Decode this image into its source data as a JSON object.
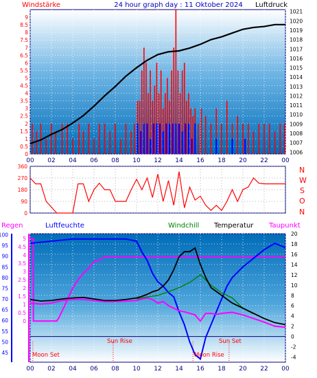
{
  "header": {
    "left_label": "Windstärke",
    "title": "24 hour graph day : 11 Oktober 2024",
    "right_label": "Luftdruck"
  },
  "mid_header": {
    "regen": "Regen",
    "luftfeuchte": "Luftfeuchte",
    "windchill": "Windchill",
    "temperatur": "Temperatur",
    "taupunkt": "Taupunkt"
  },
  "compass": [
    "N",
    "W",
    "S",
    "O",
    "N"
  ],
  "annotations": {
    "moon_set": "Moon Set",
    "sun_rise": "Sun Rise",
    "moon_rise": "Moon Rise",
    "sun_set": "Sun Set"
  },
  "colors": {
    "red": "#ff0000",
    "blue": "#0000ff",
    "black": "#000000",
    "magenta": "#ff00ff",
    "darkgreen": "#008000",
    "bg_top": "#006cb8",
    "bg_bottom": "#ffffff"
  },
  "chart_data": [
    {
      "type": "bar",
      "panel": "wind-pressure",
      "x_ticks": [
        "00",
        "02",
        "04",
        "06",
        "08",
        "10",
        "12",
        "14",
        "16",
        "18",
        "20",
        "22",
        "00"
      ],
      "xlim": [
        0,
        24
      ],
      "y_left_ticks": [
        "0",
        "0.5",
        "1",
        "1.5",
        "2",
        "2.5",
        "3",
        "3.5",
        "4",
        "4.5",
        "5",
        "5.5",
        "6",
        "6.5",
        "7",
        "7.5",
        "8",
        "8.5",
        "9"
      ],
      "ylim_left": [
        0,
        9.5
      ],
      "y_right_ticks": [
        "1006",
        "1007",
        "1008",
        "1009",
        "1010",
        "1011",
        "1012",
        "1013",
        "1014",
        "1015",
        "1016",
        "1017",
        "1018",
        "1019",
        "1020",
        "1021"
      ],
      "ylim_right": [
        1005.8,
        1021.2
      ],
      "pressure": {
        "x": [
          0,
          1,
          2,
          3,
          4,
          5,
          6,
          7,
          8,
          9,
          10,
          11,
          12,
          13,
          14,
          15,
          16,
          17,
          18,
          19,
          20,
          21,
          22,
          23,
          24
        ],
        "y": [
          1006.9,
          1007.3,
          1007.9,
          1008.4,
          1009.1,
          1009.9,
          1010.9,
          1012.0,
          1013.0,
          1014.1,
          1015.0,
          1015.8,
          1016.4,
          1016.7,
          1016.8,
          1017.1,
          1017.5,
          1018.0,
          1018.3,
          1018.7,
          1019.1,
          1019.3,
          1019.4,
          1019.6,
          1019.6
        ]
      },
      "wind_avg": {
        "x": [
          10.1,
          10.4,
          10.7,
          11.0,
          11.3,
          11.6,
          11.9,
          12.2,
          12.5,
          12.8,
          13.1,
          13.4,
          13.7,
          14.0,
          14.3,
          14.6,
          14.9,
          15.2,
          15.5,
          17.5,
          19.0,
          20.2
        ],
        "y": [
          2,
          1.5,
          2,
          2,
          1,
          2,
          2,
          2,
          1.5,
          2,
          2,
          2,
          2,
          2,
          1.5,
          2,
          2,
          1,
          2,
          1,
          1,
          1
        ]
      },
      "wind_gust": {
        "x": [
          0.2,
          0.6,
          1.0,
          1.5,
          2.0,
          2.4,
          3.0,
          3.5,
          4.0,
          4.6,
          5.0,
          5.5,
          6.0,
          6.5,
          7.0,
          7.5,
          8.0,
          8.5,
          9.0,
          9.5,
          9.8,
          10.1,
          10.3,
          10.5,
          10.7,
          10.9,
          11.1,
          11.3,
          11.5,
          11.7,
          11.9,
          12.1,
          12.3,
          12.5,
          12.7,
          12.9,
          13.1,
          13.3,
          13.5,
          13.7,
          13.9,
          14.1,
          14.3,
          14.5,
          14.7,
          14.9,
          15.1,
          15.3,
          15.5,
          15.8,
          16.1,
          16.5,
          17.0,
          17.5,
          18.0,
          18.5,
          19.0,
          19.5,
          20.0,
          20.5,
          21.0,
          21.5,
          22.0,
          22.5,
          23.0,
          23.5,
          23.9
        ],
        "y": [
          2,
          1.5,
          2,
          1,
          2,
          1.5,
          2,
          2,
          1,
          2,
          1.5,
          2,
          1,
          2,
          2,
          1.5,
          2,
          1,
          2,
          1.5,
          2,
          3.5,
          3.5,
          5.5,
          7,
          6,
          4,
          5.5,
          3.5,
          4.5,
          6,
          4,
          5.5,
          3,
          4,
          5,
          3.5,
          5.5,
          7,
          9.5,
          5.5,
          4,
          5.5,
          6,
          3.5,
          4,
          3,
          2.5,
          3,
          2,
          3,
          2.5,
          2,
          3,
          2,
          3.5,
          2,
          2.5,
          2,
          2,
          1.5,
          2,
          2,
          2,
          1.5,
          2,
          2
        ]
      }
    },
    {
      "type": "line",
      "panel": "wind-direction",
      "xlim": [
        0,
        24
      ],
      "y_ticks": [
        "0",
        "90",
        "180",
        "270",
        "360"
      ],
      "ylim": [
        0,
        360
      ],
      "direction": {
        "x": [
          0,
          0.5,
          1.0,
          1.5,
          2.0,
          2.5,
          3.0,
          3.5,
          4.0,
          4.5,
          5.0,
          5.5,
          6.0,
          6.5,
          7.0,
          7.5,
          8.0,
          8.5,
          9.0,
          9.5,
          10.0,
          10.5,
          11.0,
          11.5,
          12.0,
          12.5,
          13.0,
          13.5,
          14.0,
          14.5,
          15.0,
          15.5,
          16.0,
          16.5,
          17.0,
          17.5,
          18.0,
          18.5,
          19.0,
          19.5,
          20.0,
          20.5,
          21.0,
          21.5,
          22.0,
          22.5,
          23.0,
          23.5,
          24.0
        ],
        "y": [
          270,
          225,
          225,
          90,
          45,
          0,
          0,
          0,
          0,
          225,
          225,
          90,
          180,
          230,
          180,
          180,
          90,
          90,
          90,
          180,
          260,
          180,
          270,
          120,
          300,
          90,
          250,
          60,
          320,
          40,
          200,
          100,
          130,
          60,
          20,
          60,
          20,
          90,
          180,
          90,
          180,
          200,
          270,
          230,
          225,
          225,
          225,
          225,
          225
        ]
      }
    },
    {
      "type": "line",
      "panel": "humidity-temperature",
      "x_ticks": [
        "00",
        "02",
        "04",
        "06",
        "08",
        "10",
        "12",
        "14",
        "16",
        "18",
        "20",
        "22",
        "00"
      ],
      "xlim": [
        0,
        24
      ],
      "y_left_ticks": [
        "45",
        "50",
        "55",
        "60",
        "65",
        "70",
        "75",
        "80",
        "85",
        "90",
        "95",
        "100"
      ],
      "ylim_humidity": [
        40.5,
        100.5
      ],
      "rain_ticks": [
        "0",
        "0.5",
        "1",
        "1.5",
        "2",
        "2.5",
        "3",
        "3.5",
        "4",
        "4.5",
        "5"
      ],
      "y_right_ticks": [
        "-4",
        "-2",
        "0",
        "2",
        "4",
        "6",
        "8",
        "10",
        "12",
        "14",
        "16",
        "18",
        "20"
      ],
      "ylim_temperature": [
        -5,
        20
      ],
      "humidity": {
        "x": [
          0,
          2,
          4,
          5.5,
          7,
          8,
          9,
          10,
          10.5,
          11,
          11.5,
          12,
          12.5,
          13,
          13.5,
          14,
          14.5,
          15,
          15.5,
          16,
          16.5,
          17,
          17.5,
          18,
          18.5,
          19,
          20,
          21,
          22,
          23,
          24
        ],
        "y": [
          96,
          97,
          98,
          98,
          98,
          98,
          98,
          97,
          92,
          88,
          82,
          78,
          76,
          73,
          71,
          64,
          58,
          50,
          44,
          42,
          52,
          58,
          64,
          70,
          76,
          80,
          85,
          89,
          93,
          96,
          94
        ]
      },
      "temperature": {
        "x": [
          0,
          1,
          2,
          3,
          4,
          5,
          6,
          7,
          8,
          9,
          10,
          10.5,
          11,
          11.5,
          12,
          12.5,
          13,
          13.5,
          14,
          14.5,
          15,
          15.5,
          16,
          16.5,
          17,
          18,
          19,
          20,
          21,
          22,
          23,
          24
        ],
        "y": [
          7.2,
          6.9,
          7.0,
          7.3,
          7.5,
          7.6,
          7.3,
          7.0,
          7.0,
          7.2,
          7.5,
          7.8,
          8.2,
          8.7,
          9.0,
          9.8,
          11.0,
          13.0,
          15.5,
          16.5,
          16.5,
          17.2,
          14.0,
          11.5,
          9.5,
          8.0,
          6.5,
          5.5,
          4.5,
          3.5,
          2.7,
          2.3
        ]
      },
      "windchill": {
        "x": [
          10,
          11,
          12,
          13,
          14,
          15,
          16,
          17,
          18,
          19,
          20,
          21
        ],
        "y": [
          7.3,
          7.7,
          8.0,
          8.7,
          9.5,
          10.5,
          12.0,
          10.0,
          8.5,
          7.5,
          5.5,
          4.4
        ]
      },
      "dewpoint": {
        "x": [
          0,
          1,
          2,
          3,
          4,
          5,
          6,
          7,
          8,
          9,
          10,
          10.5,
          11,
          11.5,
          12,
          12.5,
          13,
          13.5,
          14,
          14.5,
          15,
          15.5,
          16,
          16.5,
          17,
          17.5,
          18,
          19,
          20,
          21,
          22,
          23,
          24
        ],
        "y": [
          6.5,
          6.3,
          6.5,
          7.0,
          7.2,
          7.2,
          7.0,
          6.8,
          6.8,
          6.9,
          7.0,
          7.3,
          7.5,
          7.2,
          6.5,
          6.8,
          6.0,
          5.5,
          5.0,
          4.8,
          4.5,
          4.2,
          3.0,
          4.5,
          4.5,
          4.3,
          4.5,
          4.7,
          4.2,
          3.5,
          2.8,
          2.0,
          1.8
        ]
      },
      "rain": {
        "x": [
          0,
          0.3,
          0.3,
          2.5,
          2.7,
          3.0,
          3.5,
          4.0,
          4.5,
          5.0,
          5.5,
          6.0,
          6.5,
          7.0,
          24
        ],
        "y": [
          5.0,
          5.0,
          0,
          0,
          0.2,
          0.6,
          1.3,
          2.0,
          2.5,
          2.9,
          3.2,
          3.6,
          3.7,
          3.9,
          3.9
        ]
      },
      "zero_temperature_line": 0,
      "events": [
        {
          "label": "Moon Set",
          "x": 0.25
        },
        {
          "label": "Sun Rise",
          "x": 7.8
        },
        {
          "label": "Moon Rise",
          "x": 15.3
        },
        {
          "label": "Sun Set",
          "x": 18.7
        }
      ]
    }
  ]
}
